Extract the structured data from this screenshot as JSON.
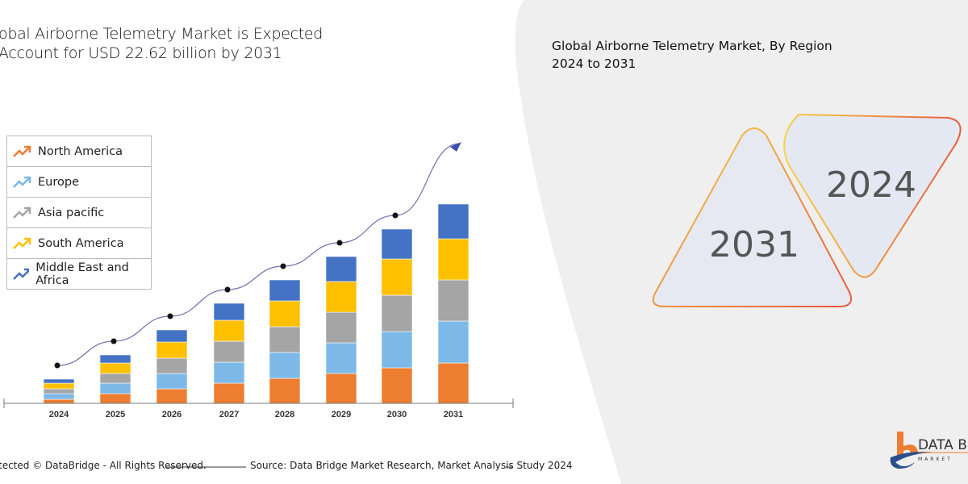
{
  "header": {
    "title_line1": "obal Airborne Telemetry Market is Expected",
    "title_line2": "Account for USD 22.62 billion by 2031"
  },
  "right_panel": {
    "title_line1": "Global Airborne Telemetry Market, By Region",
    "title_line2": "2024 to 2031",
    "year_a": "2031",
    "year_b": "2024"
  },
  "footer": {
    "copyright": "tected © DataBridge - All Rights Reserved.",
    "source": "Source: Data Bridge Market Research, Market Analysis Study 2024"
  },
  "logo": {
    "text": "DATA B",
    "sub": "MARKET"
  },
  "chart_data": {
    "type": "bar",
    "stacked": true,
    "title": "",
    "xlabel": "",
    "ylabel": "",
    "categories": [
      "2024",
      "2025",
      "2026",
      "2027",
      "2028",
      "2029",
      "2030",
      "2031"
    ],
    "legend_position": "top-left",
    "grid": false,
    "series": [
      {
        "name": "North America",
        "color": "#ED7D31",
        "values": [
          5,
          12,
          18,
          25,
          31,
          37,
          44,
          50
        ]
      },
      {
        "name": "Europe",
        "color": "#7CB9E8",
        "values": [
          7,
          13,
          19,
          26,
          32,
          38,
          45,
          52
        ]
      },
      {
        "name": "Asia pacific",
        "color": "#A5A5A5",
        "values": [
          6,
          12,
          19,
          26,
          32,
          38,
          45,
          51
        ]
      },
      {
        "name": "South America",
        "color": "#FFC000",
        "values": [
          7,
          13,
          20,
          26,
          32,
          38,
          45,
          51
        ]
      },
      {
        "name": "Middle East and Africa",
        "color": "#4472C4",
        "values": [
          5,
          10,
          15,
          21,
          26,
          31,
          37,
          43
        ]
      }
    ],
    "trend_line": {
      "color": "#7070B0",
      "has_arrow": true
    }
  }
}
